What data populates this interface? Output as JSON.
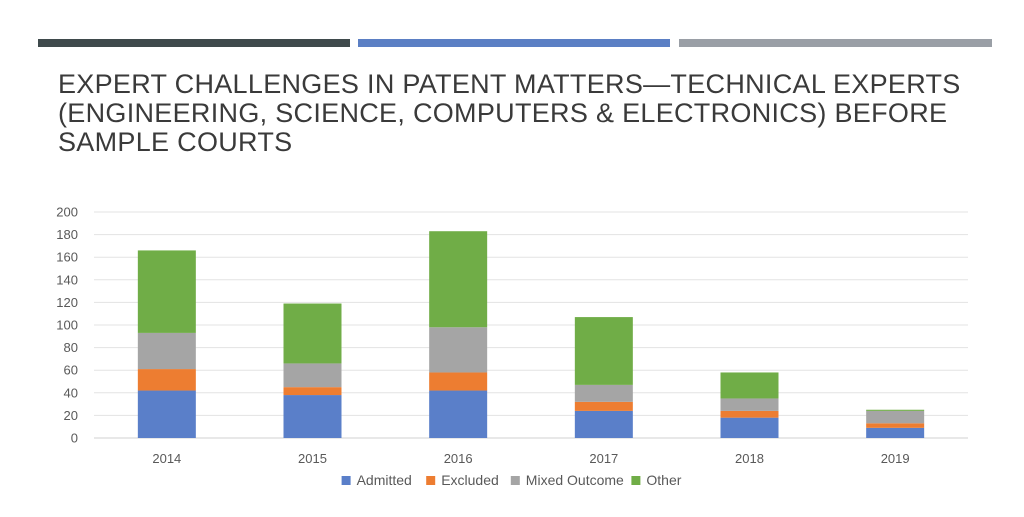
{
  "slide": {
    "title": "EXPERT CHALLENGES IN PATENT MATTERS—TECHNICAL EXPERTS (ENGINEERING, SCIENCE, COMPUTERS & ELECTRONICS) BEFORE SAMPLE COURTS",
    "accent_colors": [
      "#3f4a4c",
      "#5b7fc4",
      "#9a9fa6"
    ]
  },
  "chart_data": {
    "type": "bar",
    "stacked": true,
    "categories": [
      "2014",
      "2015",
      "2016",
      "2017",
      "2018",
      "2019"
    ],
    "series": [
      {
        "name": "Admitted",
        "color": "#5a7fc9",
        "values": [
          42,
          38,
          42,
          24,
          18,
          9
        ]
      },
      {
        "name": "Excluded",
        "color": "#ed7d31",
        "values": [
          19,
          7,
          16,
          8,
          6,
          4
        ]
      },
      {
        "name": "Mixed Outcome",
        "color": "#a5a5a5",
        "values": [
          32,
          21,
          40,
          15,
          11,
          11
        ]
      },
      {
        "name": "Other",
        "color": "#70ad47",
        "values": [
          73,
          53,
          85,
          60,
          23,
          1
        ]
      }
    ],
    "ylim": [
      0,
      200
    ],
    "yticks": [
      0,
      20,
      40,
      60,
      80,
      100,
      120,
      140,
      160,
      180,
      200
    ],
    "grid": true,
    "legend_position": "bottom",
    "xlabel": "",
    "ylabel": ""
  }
}
